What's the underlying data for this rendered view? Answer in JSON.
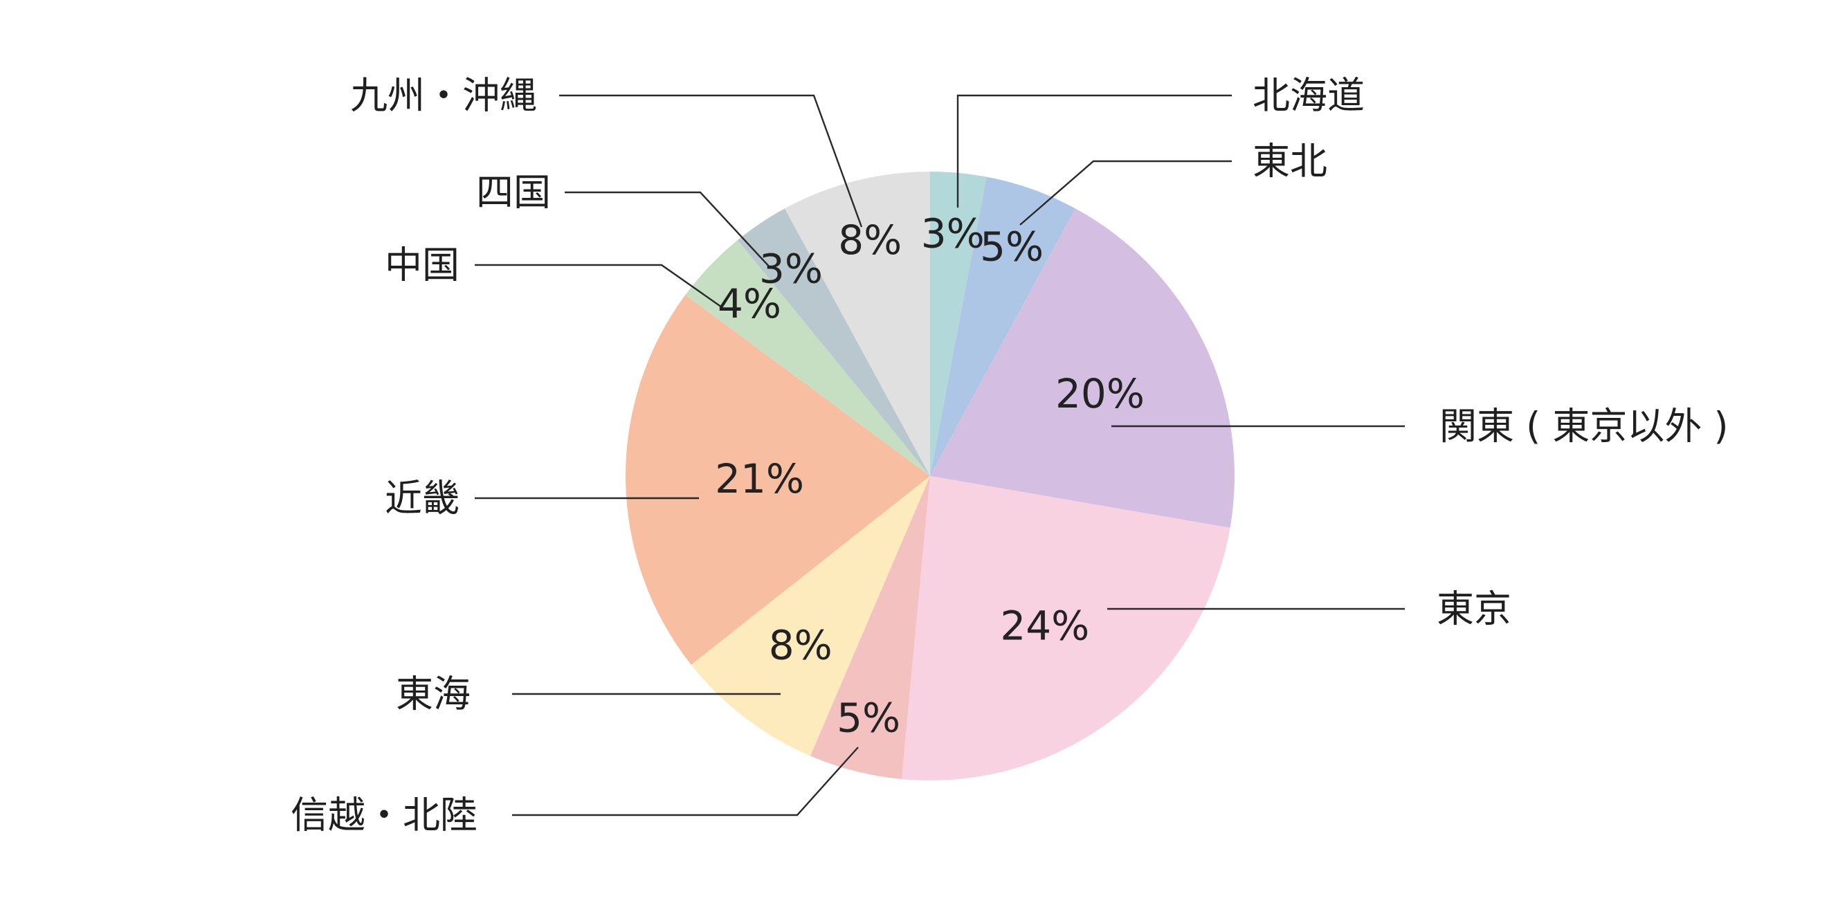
{
  "chart_data": {
    "type": "pie",
    "title": "",
    "slices": [
      {
        "label": "北海道",
        "value": 3,
        "value_label": "3%",
        "color": "#b2d8da"
      },
      {
        "label": "東北",
        "value": 5,
        "value_label": "5%",
        "color": "#aec6e5"
      },
      {
        "label": "関東 ( 東京以外 )",
        "value": 20,
        "value_label": "20%",
        "color": "#d4bfe3"
      },
      {
        "label": "東京",
        "value": 24,
        "value_label": "24%",
        "color": "#f9d2e2"
      },
      {
        "label": "信越・北陸",
        "value": 5,
        "value_label": "5%",
        "color": "#f4c1c1"
      },
      {
        "label": "東海",
        "value": 8,
        "value_label": "8%",
        "color": "#fdebbd"
      },
      {
        "label": "近畿",
        "value": 21,
        "value_label": "21%",
        "color": "#f7bea2"
      },
      {
        "label": "中国",
        "value": 4,
        "value_label": "4%",
        "color": "#c6dfc3"
      },
      {
        "label": "四国",
        "value": 3,
        "value_label": "3%",
        "color": "#b8c8ce"
      },
      {
        "label": "九州・沖縄",
        "value": 8,
        "value_label": "8%",
        "color": "#e0e0e0"
      }
    ],
    "start_direction": "top",
    "order": "clockwise",
    "legend": "none",
    "labels": "outside with leader lines"
  }
}
